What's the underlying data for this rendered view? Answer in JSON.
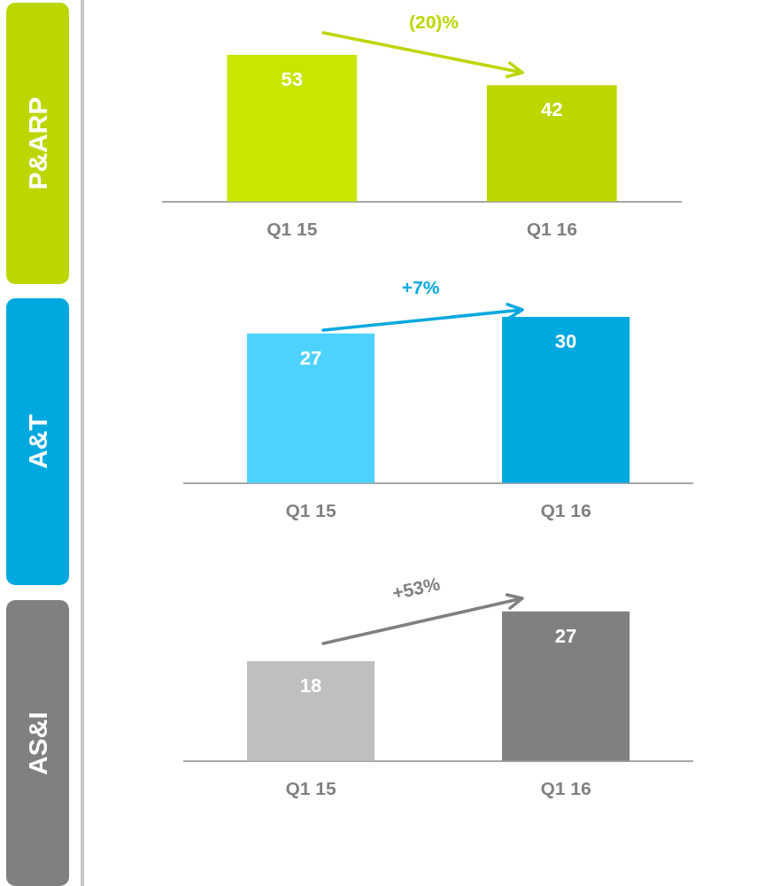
{
  "chart_data": [
    {
      "type": "bar",
      "title": "P&ARP",
      "categories": [
        "Q1 15",
        "Q1 16"
      ],
      "values": [
        53,
        42
      ],
      "colors": [
        "#c8e600",
        "#bcd600"
      ],
      "data_labels": true,
      "annotations": [
        "(20)%"
      ]
    },
    {
      "type": "bar",
      "title": "A&T",
      "categories": [
        "Q1 15",
        "Q1 16"
      ],
      "values": [
        27,
        30
      ],
      "colors": [
        "#4dd2ff",
        "#00a8e0"
      ],
      "data_labels": true,
      "annotations": [
        "+7%"
      ]
    },
    {
      "type": "bar",
      "title": "AS&I",
      "categories": [
        "Q1 15",
        "Q1 16"
      ],
      "values": [
        18,
        27
      ],
      "colors": [
        "#bfbfbf",
        "#808080"
      ],
      "data_labels": true,
      "annotations": [
        "+53%"
      ]
    }
  ]
}
